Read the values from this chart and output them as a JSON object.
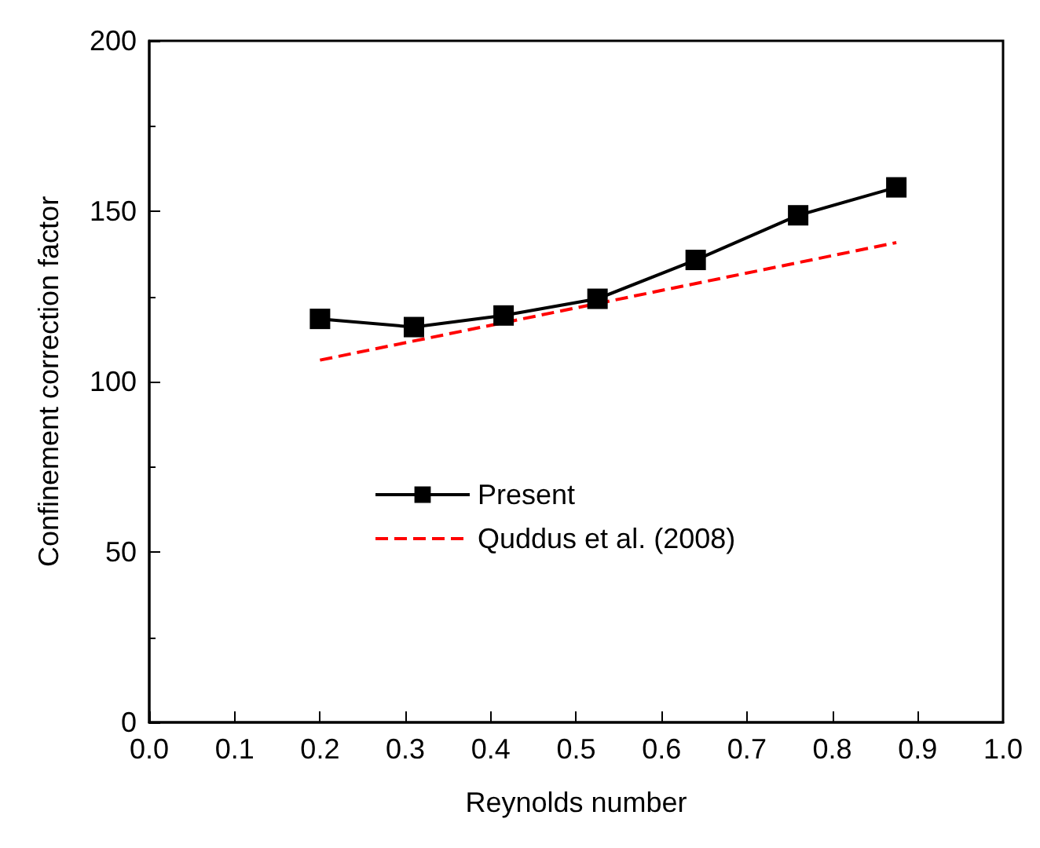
{
  "chart_data": {
    "type": "line",
    "xlabel": "Reynolds number",
    "ylabel": "Confinement correction factor",
    "xlim": [
      0,
      1
    ],
    "xticks": [
      {
        "value": 0,
        "label": "0.0"
      },
      0.1,
      0.2,
      0.3,
      0.4,
      0.5,
      0.6,
      0.7,
      0.8,
      0.9,
      {
        "value": 1,
        "label": "1.0"
      }
    ],
    "ylim": [
      0,
      200
    ],
    "yticks": [
      0,
      50,
      100,
      150,
      200
    ],
    "grid": false,
    "legend": "center",
    "series": [
      {
        "name": "Present",
        "color": "#000000",
        "marker": "square",
        "line_style": "solid",
        "x": [
          0.2,
          0.31,
          0.415,
          0.525,
          0.64,
          0.76,
          0.875
        ],
        "values": [
          118.4,
          116,
          119.4,
          124.3,
          135.7,
          148.8,
          157
        ]
      },
      {
        "name": "Quddus et al. (2008)",
        "color": "#ff0000",
        "marker": "none",
        "line_style": "dashed",
        "x": [
          0.2,
          0.875
        ],
        "values": [
          106.3,
          140.8
        ]
      }
    ]
  }
}
